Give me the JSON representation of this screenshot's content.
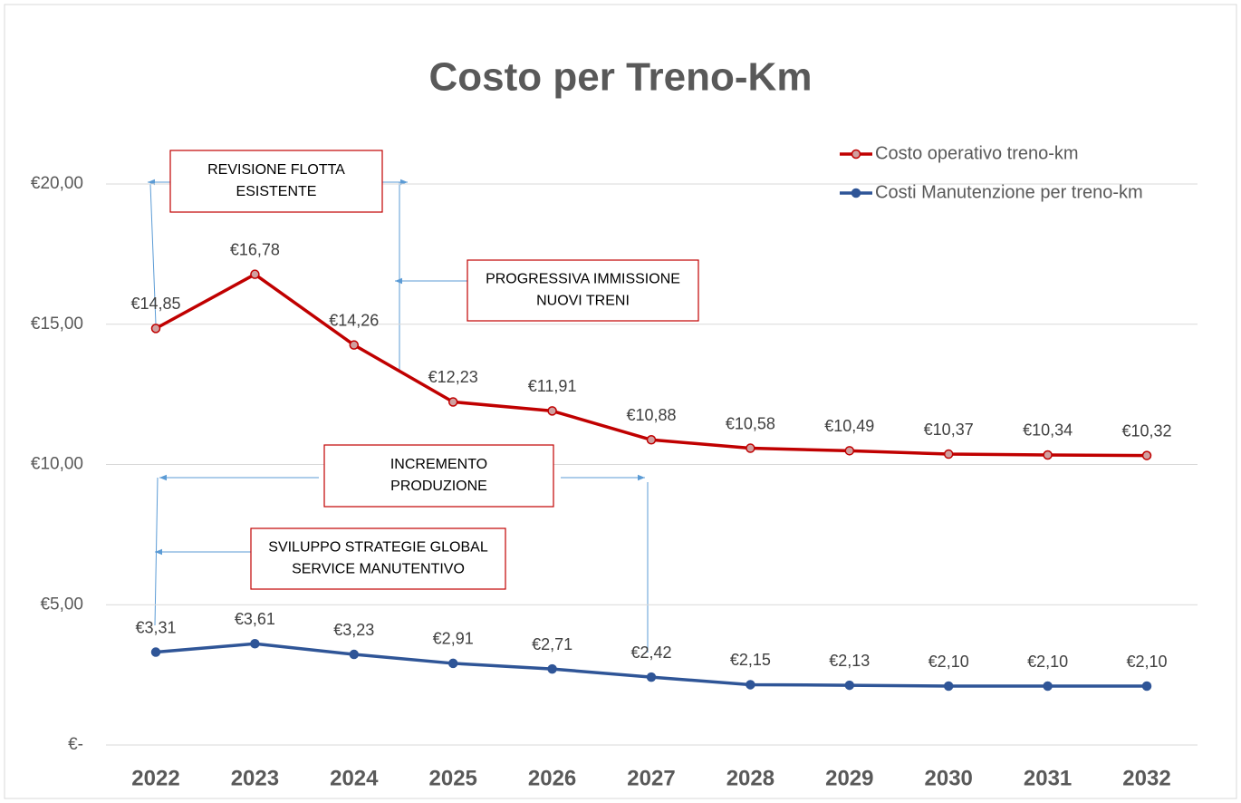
{
  "chart_data": {
    "type": "line",
    "title": "Costo per Treno-Km",
    "categories": [
      "2022",
      "2023",
      "2024",
      "2025",
      "2026",
      "2027",
      "2028",
      "2029",
      "2030",
      "2031",
      "2032"
    ],
    "series": [
      {
        "name": "Costo operativo treno-km",
        "color": "#c00000",
        "marker_fill": "#d0a0a0",
        "values": [
          14.85,
          16.78,
          14.26,
          12.23,
          11.91,
          10.88,
          10.58,
          10.49,
          10.37,
          10.34,
          10.32
        ],
        "value_labels": [
          "€14,85",
          "€16,78",
          "€14,26",
          "€12,23",
          "€11,91",
          "€10,88",
          "€10,58",
          "€10,49",
          "€10,37",
          "€10,34",
          "€10,32"
        ]
      },
      {
        "name": "Costi Manutenzione per treno-km",
        "color": "#2f5597",
        "marker_fill": "#2f5597",
        "values": [
          3.31,
          3.61,
          3.23,
          2.91,
          2.71,
          2.42,
          2.15,
          2.13,
          2.1,
          2.1,
          2.1
        ],
        "value_labels": [
          "€3,31",
          "€3,61",
          "€3,23",
          "€2,91",
          "€2,71",
          "€2,42",
          "€2,15",
          "€2,13",
          "€2,10",
          "€2,10",
          "€2,10"
        ]
      }
    ],
    "ylim": [
      0,
      20
    ],
    "yticks": [
      {
        "value": 0,
        "label": "€-"
      },
      {
        "value": 5,
        "label": "€5,00"
      },
      {
        "value": 10,
        "label": "€10,00"
      },
      {
        "value": 15,
        "label": "€15,00"
      },
      {
        "value": 20,
        "label": "€20,00"
      }
    ],
    "grid": true,
    "legend": "top-right",
    "annotations": [
      {
        "lines": [
          "REVISIONE FLOTTA",
          "ESISTENTE"
        ]
      },
      {
        "lines": [
          "PROGRESSIVA IMMISSIONE",
          "NUOVI TRENI"
        ]
      },
      {
        "lines": [
          "INCREMENTO",
          "PRODUZIONE"
        ]
      },
      {
        "lines": [
          "SVILUPPO STRATEGIE GLOBAL",
          "SERVICE MANUTENTIVO"
        ]
      }
    ]
  }
}
